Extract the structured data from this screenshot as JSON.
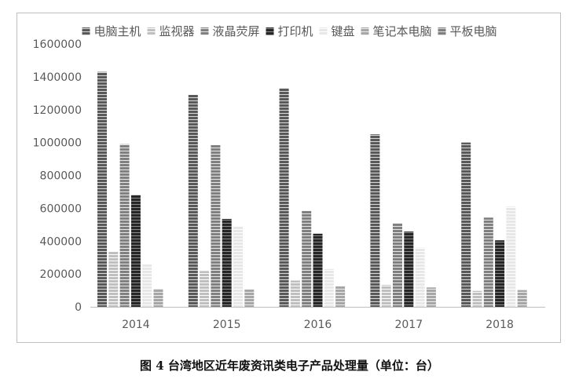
{
  "caption": "图 4 台湾地区近年废资讯类电子产品处理量（单位：台）",
  "chart_data": {
    "type": "bar",
    "categories": [
      "2014",
      "2015",
      "2016",
      "2017",
      "2018"
    ],
    "series": [
      {
        "name": "电脑主机",
        "values": [
          1430000,
          1290000,
          1330000,
          1050000,
          1000000
        ],
        "color": "#595959",
        "stripe": "#d9d9d9"
      },
      {
        "name": "监视器",
        "values": [
          335000,
          218000,
          160000,
          133000,
          97000
        ],
        "color": "#bfbfbf",
        "stripe": "#ffffff"
      },
      {
        "name": "液晶荧屏",
        "values": [
          990000,
          985000,
          585000,
          508000,
          543000
        ],
        "color": "#808080",
        "stripe": "#e8e8e8"
      },
      {
        "name": "打印机",
        "values": [
          680000,
          535000,
          445000,
          458000,
          405000
        ],
        "color": "#262626",
        "stripe": "#8c8c8c"
      },
      {
        "name": "键盘",
        "values": [
          258000,
          490000,
          230000,
          360000,
          610000
        ],
        "color": "#e7e7e7",
        "stripe": "#ffffff"
      },
      {
        "name": "笔记本电脑",
        "values": [
          110000,
          105000,
          125000,
          118000,
          102000
        ],
        "color": "#a6a6a6",
        "stripe": "#ececec"
      },
      {
        "name": "平板电脑",
        "values": [
          0,
          0,
          0,
          0,
          0
        ],
        "color": "#7f7f7f",
        "stripe": "#d9d9d9"
      }
    ],
    "y_ticks": [
      "0",
      "200000",
      "400000",
      "600000",
      "800000",
      "1000000",
      "1200000",
      "1400000",
      "1600000"
    ],
    "ylim": [
      0,
      1600000
    ],
    "grid": false,
    "legend": "top"
  }
}
